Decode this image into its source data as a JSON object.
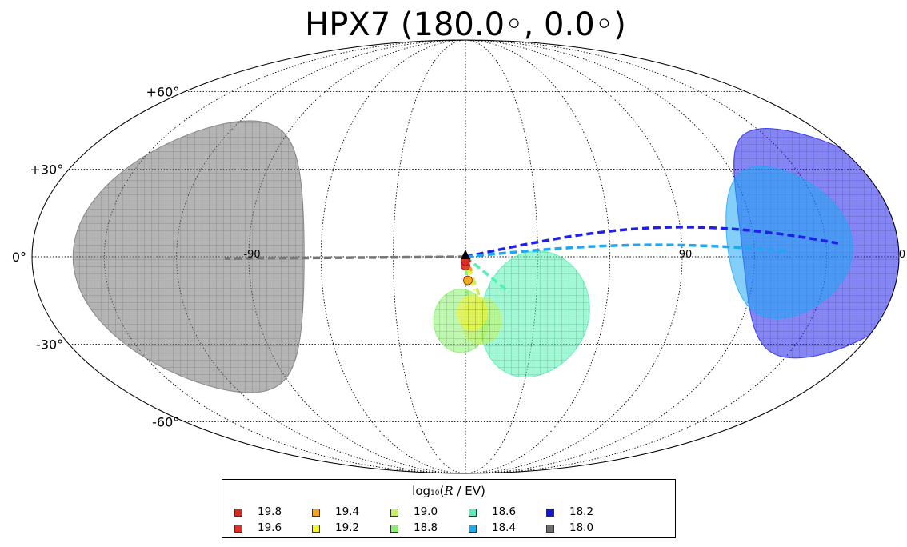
{
  "chart_data": {
    "type": "scatter",
    "projection": "mollweide",
    "title": "HPX7 (180.0◦, 0.0◦)",
    "lat_labels": [
      {
        "lat": 60,
        "text": "+60°"
      },
      {
        "lat": 30,
        "text": "+30°"
      },
      {
        "lat": 0,
        "text": "0°"
      },
      {
        "lat": -30,
        "text": "-30°"
      },
      {
        "lat": -60,
        "text": "-60°"
      }
    ],
    "lon_labels": [
      {
        "lon": -90,
        "text": "-90"
      },
      {
        "lon": 90,
        "text": "90"
      },
      {
        "lon": 180,
        "text": "0"
      }
    ],
    "graticule": {
      "lat_step_deg": 30,
      "lon_step_deg": 30,
      "style": "dotted"
    },
    "center": {
      "lon": 0.0,
      "lat": 0.0,
      "marker": "black-triangle"
    },
    "series": [
      {
        "name": "18.0",
        "color": "#777777",
        "lon": -115,
        "lat": 0,
        "radius": 48,
        "hatch": true,
        "track_end_lon": -100
      },
      {
        "name": "18.2",
        "color": "#2020ee",
        "lon": 155,
        "lat": 5,
        "radius": 40,
        "hatch": true,
        "track_bulge_lat": 10
      },
      {
        "name": "18.4",
        "color": "#1ea7f4",
        "lon": 135,
        "lat": 5,
        "radius": 26,
        "hatch": false,
        "track_bulge_lat": 4
      },
      {
        "name": "18.6",
        "color": "#52f3b2",
        "lon": 30,
        "lat": -20,
        "radius": 22,
        "hatch": true
      },
      {
        "name": "18.8",
        "color": "#88f16e",
        "lon": -2,
        "lat": -22,
        "radius": 11,
        "hatch": true
      },
      {
        "name": "19.0",
        "color": "#c4f25e",
        "lon": 7,
        "lat": -22,
        "radius": 8,
        "hatch": true
      },
      {
        "name": "19.2",
        "color": "#f7f432",
        "lon": 3,
        "lat": -19,
        "radius": 6,
        "hatch": true
      },
      {
        "name": "19.4",
        "color": "#f7a21a",
        "lon": 1,
        "lat": -8,
        "radius": 1.5,
        "hatch": false
      },
      {
        "name": "19.6",
        "color": "#e0301e",
        "lon": 0,
        "lat": -3,
        "radius": 1.5,
        "hatch": false
      },
      {
        "name": "19.8",
        "color": "#d62a1e",
        "lon": 0,
        "lat": -1.5,
        "radius": 1.5,
        "hatch": false
      }
    ],
    "legend": {
      "title_prefix": "log",
      "title_sub": "10",
      "title_open": "(",
      "title_var": "R",
      "title_unit": " / EV)",
      "placement": "bottom-center",
      "columns": 6,
      "entries": [
        {
          "label": "19.8",
          "color": "#d62a1e"
        },
        {
          "label": "19.6",
          "color": "#e0301e"
        },
        {
          "label": "19.4",
          "color": "#f7a21a"
        },
        {
          "label": "19.2",
          "color": "#f7f432"
        },
        {
          "label": "19.0",
          "color": "#c4f25e"
        },
        {
          "label": "18.8",
          "color": "#88f16e"
        },
        {
          "label": "18.6",
          "color": "#52f3b2"
        },
        {
          "label": "18.4",
          "color": "#1ea7f4"
        },
        {
          "label": "18.2",
          "color": "#1414d6"
        },
        {
          "label": "18.0",
          "color": "#6e6e6e"
        }
      ]
    }
  }
}
